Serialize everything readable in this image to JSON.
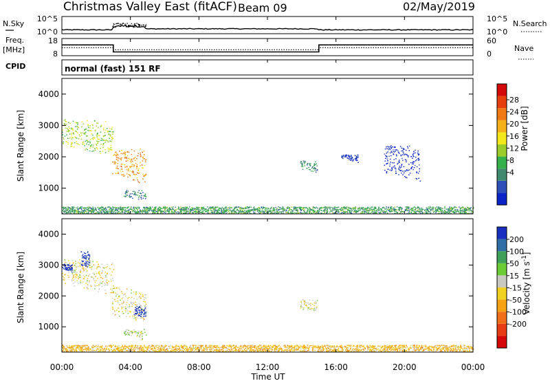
{
  "header": {
    "title": "Christmas Valley East (fitACF)",
    "beam": "Beam 09",
    "date": "02/May/2019"
  },
  "nsky_panel": {
    "left_label": "N.Sky",
    "left_ticks": [
      "10^5",
      "10^0"
    ],
    "right_label": "N.Search",
    "right_ticks": [
      "10^5",
      "10^0"
    ]
  },
  "freq_panel": {
    "left_label_line1": "Freq.",
    "left_label_line2": "[MHz]",
    "left_ticks": [
      "18",
      "8"
    ],
    "right_label": "Nave",
    "right_ticks": [
      "60",
      "0"
    ],
    "freq_mhz": {
      "time_h": [
        0,
        3,
        3,
        15,
        15,
        24
      ],
      "value": [
        14.3,
        14.3,
        10.2,
        10.2,
        14.3,
        14.3
      ]
    },
    "nave": {
      "time_h": [
        0,
        3,
        3,
        15,
        15,
        24
      ],
      "value": [
        28,
        28,
        21,
        21,
        28,
        28
      ]
    }
  },
  "cpid": {
    "label": "CPID",
    "mode": "normal (fast) 151 RF"
  },
  "power_panel": {
    "ylabel": "Slant Range [km]",
    "yticks": [
      "4000",
      "3000",
      "2000",
      "1000"
    ],
    "colorbar_label": "Power [dB]",
    "colorbar_ticks": [
      "28",
      "24",
      "20",
      "16",
      "12",
      "8",
      "4"
    ],
    "colors": [
      "#0a24c8",
      "#2f4fb8",
      "#3f8a6e",
      "#35b04a",
      "#9ccc2a",
      "#f2e81c",
      "#f5b01a",
      "#f07a14",
      "#e8400c",
      "#d40a0a"
    ]
  },
  "velocity_panel": {
    "ylabel": "Slant Range [km]",
    "yticks": [
      "4000",
      "3000",
      "2000",
      "1000"
    ],
    "colorbar_label": "Velocity [m s^-1]",
    "colorbar_ticks": [
      "200",
      "100",
      "50",
      "15",
      "-15",
      "-50",
      "-100",
      "-200"
    ],
    "colors": [
      "#1a2fc0",
      "#2f6fa6",
      "#3fa05a",
      "#6ccc35",
      "#c9c9c2",
      "#f0d020",
      "#f5a315",
      "#f0701a",
      "#e83c12",
      "#d40808"
    ]
  },
  "xaxis": {
    "label": "Time UT",
    "ticks": [
      "00:00",
      "04:00",
      "08:00",
      "12:00",
      "16:00",
      "20:00",
      "00:00"
    ]
  },
  "chart_data": {
    "type": "heatmap",
    "title": "Christmas Valley East (fitACF)",
    "xlabel": "Time UT",
    "ylabel": "Slant Range [km]",
    "xlim": [
      0,
      24
    ],
    "ylim": [
      180,
      4500
    ],
    "panels": [
      {
        "name": "Power [dB]",
        "colorbar": [
          4,
          30
        ],
        "regions": [
          {
            "t": [
              0.0,
              3.0
            ],
            "r": [
              2400,
              3250
            ],
            "value": 16
          },
          {
            "t": [
              2.9,
              4.9
            ],
            "r": [
              1400,
              2300
            ],
            "value": 22
          },
          {
            "t": [
              3.6,
              4.9
            ],
            "r": [
              750,
              950
            ],
            "value": 10
          },
          {
            "t": [
              13.9,
              14.9
            ],
            "r": [
              1600,
              1900
            ],
            "value": 11
          },
          {
            "t": [
              16.3,
              17.3
            ],
            "r": [
              1950,
              2100
            ],
            "value": 6
          },
          {
            "t": [
              18.8,
              20.9
            ],
            "r": [
              1500,
              2400
            ],
            "value": 5
          },
          {
            "t": [
              0.0,
              24.0
            ],
            "r": [
              180,
              420
            ],
            "value": 12
          }
        ]
      },
      {
        "name": "Velocity [m s^-1]",
        "colorbar": [
          -230,
          230
        ],
        "regions": [
          {
            "t": [
              0.0,
              3.0
            ],
            "r": [
              2400,
              3250
            ],
            "value": 0
          },
          {
            "t": [
              0.0,
              0.6
            ],
            "r": [
              2850,
              3050
            ],
            "value": 220
          },
          {
            "t": [
              1.1,
              1.6
            ],
            "r": [
              3000,
              3450
            ],
            "value": 220
          },
          {
            "t": [
              2.9,
              4.9
            ],
            "r": [
              1400,
              2300
            ],
            "value": 0
          },
          {
            "t": [
              4.2,
              4.9
            ],
            "r": [
              1400,
              1700
            ],
            "value": 220
          },
          {
            "t": [
              3.6,
              4.9
            ],
            "r": [
              750,
              950
            ],
            "value": 40
          },
          {
            "t": [
              13.9,
              14.9
            ],
            "r": [
              1600,
              1900
            ],
            "value": 0
          },
          {
            "t": [
              0.0,
              24.0
            ],
            "r": [
              180,
              420
            ],
            "value": -40
          }
        ]
      }
    ]
  }
}
